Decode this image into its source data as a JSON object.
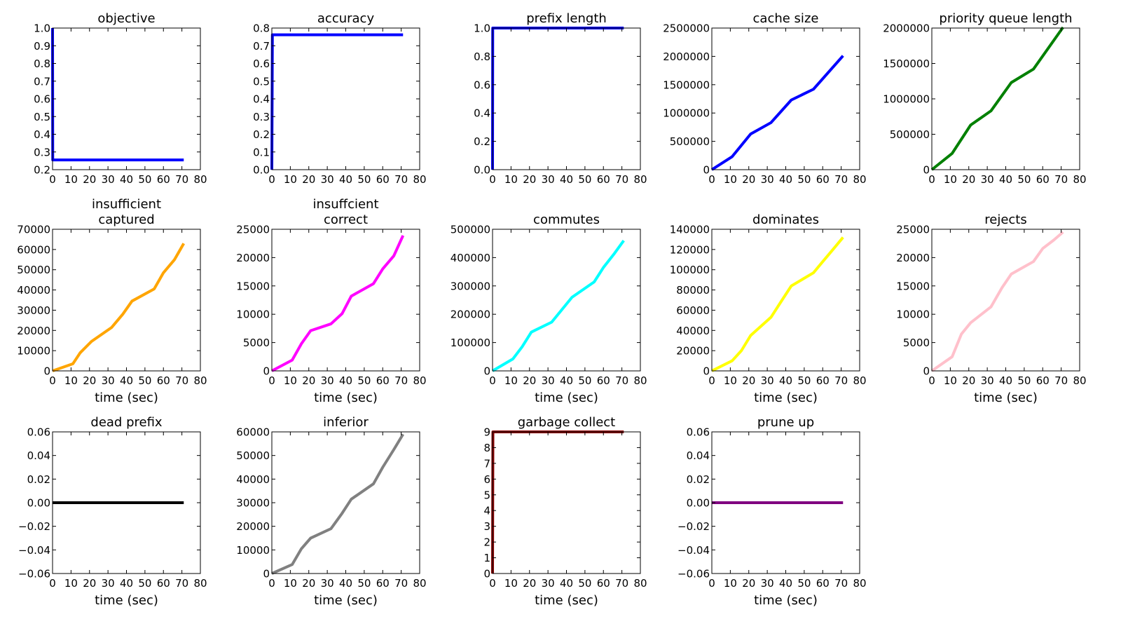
{
  "chart_data": [
    {
      "type": "line",
      "title": [
        "objective"
      ],
      "xlabel": "",
      "xlim": [
        0,
        80
      ],
      "ylim": [
        0.2,
        1.0
      ],
      "xticks": [
        "0",
        "10",
        "20",
        "30",
        "40",
        "50",
        "60",
        "70",
        "80"
      ],
      "yticks": [
        "0.2",
        "0.3",
        "0.4",
        "0.5",
        "0.6",
        "0.7",
        "0.8",
        "0.9",
        "1.0"
      ],
      "color": "#0000ff",
      "x": [
        0,
        0.1,
        71
      ],
      "y": [
        1.0,
        0.255,
        0.255
      ]
    },
    {
      "type": "line",
      "title": [
        "accuracy"
      ],
      "xlabel": "",
      "xlim": [
        0,
        80
      ],
      "ylim": [
        0.0,
        0.8
      ],
      "xticks": [
        "0",
        "10",
        "20",
        "30",
        "40",
        "50",
        "60",
        "70",
        "80"
      ],
      "yticks": [
        "0.0",
        "0.1",
        "0.2",
        "0.3",
        "0.4",
        "0.5",
        "0.6",
        "0.7",
        "0.8"
      ],
      "color": "#0000ff",
      "x": [
        0,
        0.3,
        71
      ],
      "y": [
        0.0,
        0.762,
        0.762
      ]
    },
    {
      "type": "line",
      "title": [
        "prefix length"
      ],
      "xlabel": "",
      "xlim": [
        0,
        80
      ],
      "ylim": [
        0.0,
        1.0
      ],
      "xticks": [
        "0",
        "10",
        "20",
        "30",
        "40",
        "50",
        "60",
        "70",
        "80"
      ],
      "yticks": [
        "0.0",
        "0.2",
        "0.4",
        "0.6",
        "0.8",
        "1.0"
      ],
      "color": "#0000ff",
      "x": [
        0,
        0.1,
        71
      ],
      "y": [
        0.0,
        1.0,
        1.0
      ]
    },
    {
      "type": "line",
      "title": [
        "cache size"
      ],
      "xlabel": "",
      "xlim": [
        0,
        80
      ],
      "ylim": [
        0,
        2500000
      ],
      "xticks": [
        "0",
        "10",
        "20",
        "30",
        "40",
        "50",
        "60",
        "70",
        "80"
      ],
      "yticks": [
        "0",
        "500000",
        "1000000",
        "1500000",
        "2000000",
        "2500000"
      ],
      "color": "#0000ff",
      "x": [
        0,
        11,
        21,
        32,
        43,
        55,
        71
      ],
      "y": [
        0,
        230000,
        630000,
        830000,
        1230000,
        1420000,
        2010000
      ]
    },
    {
      "type": "line",
      "title": [
        "priority queue length"
      ],
      "xlabel": "",
      "xlim": [
        0,
        80
      ],
      "ylim": [
        0,
        2000000
      ],
      "xticks": [
        "0",
        "10",
        "20",
        "30",
        "40",
        "50",
        "60",
        "70",
        "80"
      ],
      "yticks": [
        "0",
        "500000",
        "1000000",
        "1500000",
        "2000000"
      ],
      "color": "#008000",
      "x": [
        0,
        11,
        21,
        32,
        43,
        55,
        71
      ],
      "y": [
        0,
        230000,
        630000,
        830000,
        1230000,
        1420000,
        2010000
      ]
    },
    {
      "type": "line",
      "title": [
        "insufficient",
        "captured"
      ],
      "xlabel": "time (sec)",
      "xlim": [
        0,
        80
      ],
      "ylim": [
        0,
        70000
      ],
      "xticks": [
        "0",
        "10",
        "20",
        "30",
        "40",
        "50",
        "60",
        "70",
        "80"
      ],
      "yticks": [
        "0",
        "10000",
        "20000",
        "30000",
        "40000",
        "50000",
        "60000",
        "70000"
      ],
      "color": "#ffa500",
      "x": [
        0,
        11,
        15,
        21,
        32,
        38,
        43,
        55,
        60,
        66,
        71
      ],
      "y": [
        0,
        3500,
        9000,
        14500,
        21500,
        28000,
        34500,
        40500,
        48500,
        55000,
        63000
      ]
    },
    {
      "type": "line",
      "title": [
        "insuffcient",
        "correct"
      ],
      "xlabel": "time (sec)",
      "xlim": [
        0,
        80
      ],
      "ylim": [
        0,
        25000
      ],
      "xticks": [
        "0",
        "10",
        "20",
        "30",
        "40",
        "50",
        "60",
        "70",
        "80"
      ],
      "yticks": [
        "0",
        "5000",
        "10000",
        "15000",
        "20000",
        "25000"
      ],
      "color": "#ff00ff",
      "x": [
        0,
        11,
        16,
        21,
        32,
        38,
        43,
        55,
        60,
        66,
        71
      ],
      "y": [
        0,
        1900,
        4800,
        7100,
        8300,
        10100,
        13200,
        15400,
        18000,
        20300,
        23900
      ]
    },
    {
      "type": "line",
      "title": [
        "commutes"
      ],
      "xlabel": "time (sec)",
      "xlim": [
        0,
        80
      ],
      "ylim": [
        0,
        500000
      ],
      "xticks": [
        "0",
        "10",
        "20",
        "30",
        "40",
        "50",
        "60",
        "70",
        "80"
      ],
      "yticks": [
        "0",
        "100000",
        "200000",
        "300000",
        "400000",
        "500000"
      ],
      "color": "#00ffff",
      "x": [
        0,
        11,
        16,
        21,
        32,
        38,
        43,
        55,
        60,
        66,
        71
      ],
      "y": [
        0,
        42000,
        85000,
        137000,
        172000,
        220000,
        260000,
        314000,
        365000,
        415000,
        460000
      ]
    },
    {
      "type": "line",
      "title": [
        "dominates"
      ],
      "xlabel": "time (sec)",
      "xlim": [
        0,
        80
      ],
      "ylim": [
        0,
        140000
      ],
      "xticks": [
        "0",
        "10",
        "20",
        "30",
        "40",
        "50",
        "60",
        "70",
        "80"
      ],
      "yticks": [
        "0",
        "20000",
        "40000",
        "60000",
        "80000",
        "100000",
        "120000",
        "140000"
      ],
      "color": "#ffff00",
      "x": [
        0,
        11,
        16,
        21,
        32,
        38,
        43,
        55,
        60,
        66,
        71
      ],
      "y": [
        0,
        10000,
        20000,
        35000,
        53000,
        70000,
        84000,
        97000,
        108000,
        121000,
        132000
      ]
    },
    {
      "type": "line",
      "title": [
        "rejects"
      ],
      "xlabel": "time (sec)",
      "xlim": [
        0,
        80
      ],
      "ylim": [
        0,
        25000
      ],
      "xticks": [
        "0",
        "10",
        "20",
        "30",
        "40",
        "50",
        "60",
        "70",
        "80"
      ],
      "yticks": [
        "0",
        "5000",
        "10000",
        "15000",
        "20000",
        "25000"
      ],
      "color": "#ffc0cb",
      "x": [
        0,
        11,
        16,
        21,
        32,
        38,
        43,
        55,
        60,
        66,
        71
      ],
      "y": [
        0,
        2500,
        6500,
        8500,
        11300,
        14700,
        17100,
        19300,
        21600,
        23100,
        24500
      ]
    },
    {
      "type": "line",
      "title": [
        "dead prefix"
      ],
      "xlabel": "time (sec)",
      "xlim": [
        0,
        80
      ],
      "ylim": [
        -0.06,
        0.06
      ],
      "xticks": [
        "0",
        "10",
        "20",
        "30",
        "40",
        "50",
        "60",
        "70",
        "80"
      ],
      "yticks": [
        "−0.06",
        "−0.04",
        "−0.02",
        "0.00",
        "0.02",
        "0.04",
        "0.06"
      ],
      "color": "#000000",
      "x": [
        0,
        71
      ],
      "y": [
        0,
        0
      ]
    },
    {
      "type": "line",
      "title": [
        "inferior"
      ],
      "xlabel": "time (sec)",
      "xlim": [
        0,
        80
      ],
      "ylim": [
        0,
        60000
      ],
      "xticks": [
        "0",
        "10",
        "20",
        "30",
        "40",
        "50",
        "60",
        "70",
        "80"
      ],
      "yticks": [
        "0",
        "10000",
        "20000",
        "30000",
        "40000",
        "50000",
        "60000"
      ],
      "color": "#808080",
      "x": [
        0,
        11,
        16,
        21,
        32,
        38,
        43,
        55,
        60,
        66,
        71
      ],
      "y": [
        0,
        3800,
        10500,
        15000,
        19000,
        25500,
        31500,
        38000,
        45000,
        52500,
        59000
      ]
    },
    {
      "type": "line",
      "title": [
        "garbage collect"
      ],
      "xlabel": "time (sec)",
      "xlim": [
        0,
        80
      ],
      "ylim": [
        0,
        9
      ],
      "xticks": [
        "0",
        "10",
        "20",
        "30",
        "40",
        "50",
        "60",
        "70",
        "80"
      ],
      "yticks": [
        "0",
        "1",
        "2",
        "3",
        "4",
        "5",
        "6",
        "7",
        "8",
        "9"
      ],
      "color": "#8b0000",
      "x": [
        0,
        0.2,
        71
      ],
      "y": [
        0,
        9,
        9
      ]
    },
    {
      "type": "line",
      "title": [
        "prune up"
      ],
      "xlabel": "time (sec)",
      "xlim": [
        0,
        80
      ],
      "ylim": [
        -0.06,
        0.06
      ],
      "xticks": [
        "0",
        "10",
        "20",
        "30",
        "40",
        "50",
        "60",
        "70",
        "80"
      ],
      "yticks": [
        "−0.06",
        "−0.04",
        "−0.02",
        "0.00",
        "0.02",
        "0.04",
        "0.06"
      ],
      "color": "#800080",
      "x": [
        0,
        71
      ],
      "y": [
        0,
        0
      ]
    }
  ]
}
